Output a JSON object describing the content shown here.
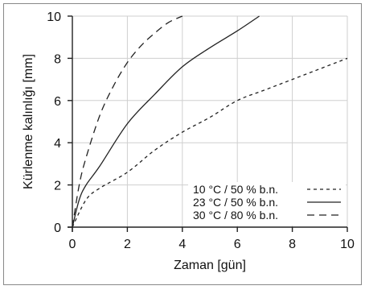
{
  "chart_data": {
    "type": "line",
    "title": "",
    "xlabel": "Zaman [gün]",
    "ylabel": "Kürlenme kalınlığı [mm]",
    "xlim": [
      0,
      10
    ],
    "ylim": [
      0,
      10
    ],
    "xticks": [
      0,
      2,
      4,
      6,
      8,
      10
    ],
    "yticks": [
      0,
      2,
      4,
      6,
      8,
      10
    ],
    "grid": true,
    "legend_position": "bottom-right",
    "series": [
      {
        "name": "10 °C / 50 % b.n.",
        "line_style": "dotted",
        "color": "#222222",
        "x": [
          0,
          0.5,
          1,
          2,
          3,
          4,
          5,
          6,
          7,
          8,
          9,
          10
        ],
        "y": [
          0,
          1.3,
          1.85,
          2.6,
          3.65,
          4.5,
          5.2,
          6.0,
          6.5,
          7.0,
          7.5,
          8.0
        ]
      },
      {
        "name": "23 °C / 50 % b.n.",
        "line_style": "solid",
        "color": "#222222",
        "x": [
          0,
          0.25,
          0.5,
          1,
          2,
          3,
          4,
          5,
          6,
          6.8
        ],
        "y": [
          0,
          1.3,
          2.0,
          2.9,
          4.9,
          6.3,
          7.6,
          8.5,
          9.3,
          10.0
        ]
      },
      {
        "name": "30 °C / 80 % b.n.",
        "line_style": "dashed",
        "color": "#222222",
        "x": [
          0,
          0.25,
          0.5,
          1,
          1.5,
          2,
          2.5,
          3,
          3.5,
          4.0
        ],
        "y": [
          0,
          2.0,
          3.3,
          5.3,
          6.7,
          7.8,
          8.6,
          9.2,
          9.7,
          10.0
        ]
      }
    ]
  }
}
